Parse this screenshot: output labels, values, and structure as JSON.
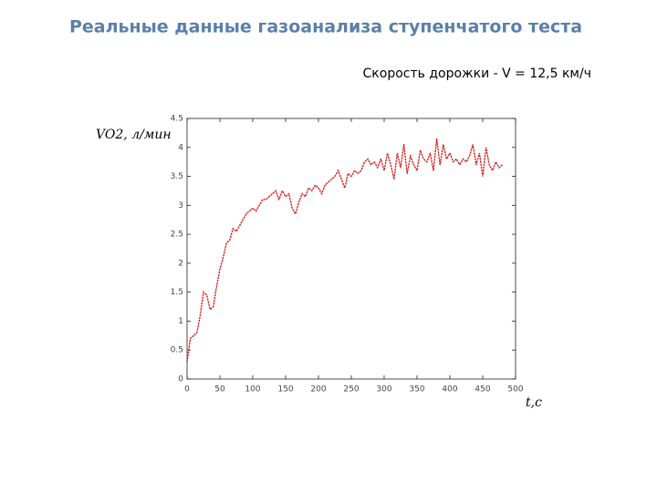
{
  "chart_data": {
    "type": "line",
    "title": "Реальные данные газоанализа ступенчатого теста",
    "subtitle": "Скорость дорожки - V = 12,5 км/ч",
    "y_label": "VO2, л/мин",
    "x_label": "t,c",
    "x": [
      0,
      5,
      10,
      15,
      20,
      25,
      30,
      35,
      40,
      45,
      50,
      55,
      60,
      65,
      70,
      75,
      80,
      85,
      90,
      95,
      100,
      105,
      110,
      115,
      120,
      125,
      130,
      135,
      140,
      145,
      150,
      155,
      160,
      165,
      170,
      175,
      180,
      185,
      190,
      195,
      200,
      205,
      210,
      215,
      220,
      225,
      230,
      235,
      240,
      245,
      250,
      255,
      260,
      265,
      270,
      275,
      280,
      285,
      290,
      295,
      300,
      305,
      310,
      315,
      320,
      325,
      330,
      335,
      340,
      345,
      350,
      355,
      360,
      365,
      370,
      375,
      380,
      385,
      390,
      395,
      400,
      405,
      410,
      415,
      420,
      425,
      430,
      435,
      440,
      445,
      450,
      455,
      460,
      465,
      470,
      475,
      480
    ],
    "series": [
      {
        "name": "VO2",
        "color": "#d62020",
        "values": [
          0.3,
          0.7,
          0.75,
          0.8,
          1.1,
          1.5,
          1.45,
          1.2,
          1.25,
          1.6,
          1.9,
          2.1,
          2.35,
          2.4,
          2.6,
          2.55,
          2.65,
          2.75,
          2.85,
          2.9,
          2.95,
          2.9,
          3.0,
          3.1,
          3.1,
          3.15,
          3.2,
          3.25,
          3.1,
          3.25,
          3.15,
          3.2,
          2.95,
          2.85,
          3.05,
          3.2,
          3.15,
          3.3,
          3.25,
          3.35,
          3.3,
          3.2,
          3.35,
          3.4,
          3.45,
          3.5,
          3.6,
          3.45,
          3.3,
          3.55,
          3.5,
          3.6,
          3.55,
          3.6,
          3.75,
          3.8,
          3.7,
          3.75,
          3.65,
          3.8,
          3.6,
          3.9,
          3.7,
          3.45,
          3.9,
          3.65,
          4.05,
          3.55,
          3.85,
          3.7,
          3.6,
          3.95,
          3.8,
          3.75,
          3.9,
          3.6,
          4.15,
          3.7,
          4.05,
          3.8,
          3.9,
          3.75,
          3.8,
          3.7,
          3.8,
          3.75,
          3.85,
          4.05,
          3.7,
          3.9,
          3.5,
          4.0,
          3.7,
          3.6,
          3.75,
          3.65,
          3.7
        ]
      }
    ],
    "xlim": [
      0,
      500
    ],
    "xticks": [
      0,
      50,
      100,
      150,
      200,
      250,
      300,
      350,
      400,
      450,
      500
    ],
    "ylim": [
      0,
      4.5
    ],
    "yticks": [
      0,
      0.5,
      1,
      1.5,
      2,
      2.5,
      3,
      3.5,
      4,
      4.5
    ]
  }
}
